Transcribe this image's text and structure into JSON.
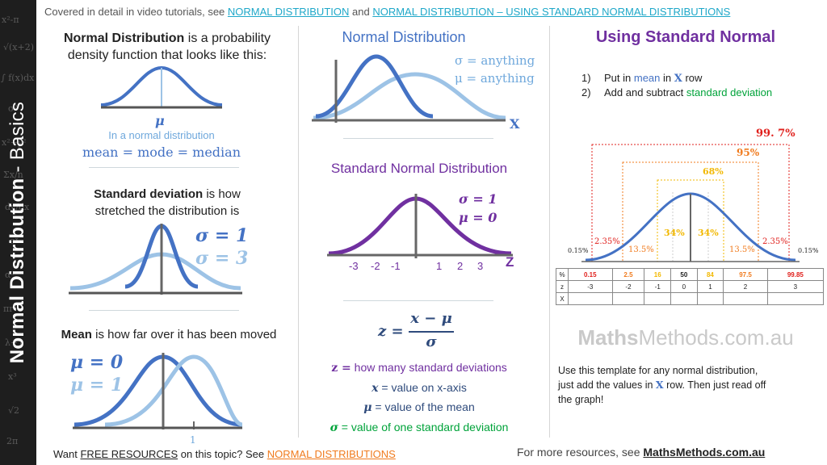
{
  "side_title": {
    "bold": "Normal Distribution",
    "rest": " - Basics"
  },
  "side_math": [
    "x²-π",
    "√(x+2)",
    "∫ f(x)dx",
    "σ²",
    "x²+y²",
    "Σx/n",
    "dy/dx",
    "eˣ",
    "α²",
    "πr²",
    "λ+1",
    "x³",
    "√2",
    "2π"
  ],
  "top_note": {
    "prefix": "Covered  in detail in video tutorials, see ",
    "link1": "NORMAL DISTRIBUTION",
    "middle": " and ",
    "link2": "NORMAL DISTRIBUTION – USING STANDARD NORMAL DISTRIBUTIONS"
  },
  "col1": {
    "sec1": {
      "title": "Normal Distribution",
      "text1": " is a probability",
      "text2": "density function that looks like this:",
      "mu": "μ",
      "caption": "In a normal distribution",
      "equation": "mean = mode = median"
    },
    "sec2": {
      "title": "Standard deviation",
      "text1": " is how",
      "text2": "stretched the distribution  is",
      "sigma1": "σ = 1",
      "sigma3": "σ = 3"
    },
    "sec3": {
      "title": "Mean",
      "text": " is how far over it has been moved",
      "mu0": "μ = 0",
      "mu1": "μ = 1",
      "tick": "1"
    }
  },
  "col2": {
    "sec1": {
      "title": "Normal Distribution",
      "sigma": "σ = anything",
      "mu": "μ = anything",
      "x_label": "X"
    },
    "sec2": {
      "title": "Standard Normal Distribution",
      "sigma": "σ = 1",
      "mu": "μ = 0",
      "z_label": "Z",
      "ticks": [
        "-3",
        "-2",
        "-1",
        "1",
        "2",
        "3"
      ]
    },
    "formula": {
      "lhs": "z =",
      "num": "x − μ",
      "den": "σ"
    },
    "defs": [
      {
        "sym": "z =",
        "text": "  how many standard deviations"
      },
      {
        "sym": "x",
        "text": " = value on x-axis"
      },
      {
        "sym": "μ",
        "text": " = value of the mean"
      },
      {
        "sym": "σ",
        "text": " = value of one standard deviation"
      }
    ]
  },
  "col3": {
    "title": "Using Standard Normal",
    "steps": [
      {
        "num": "1)",
        "a": "Put in ",
        "hl": "mean",
        "b": " in ",
        "x": "X",
        "c": " row"
      },
      {
        "num": "2)",
        "a": "Add and subtract ",
        "hl": "standard deviation"
      }
    ],
    "chart": {
      "p997": "99. 7%",
      "p95": "95%",
      "p68": "68%",
      "p34a": "34%",
      "p34b": "34%",
      "p135a": "13.5%",
      "p135b": "13.5%",
      "p235a": "2.35%",
      "p235b": "2.35%",
      "p015a": "0.15%",
      "p015b": "0.15%"
    },
    "table": {
      "pct_label": "%",
      "pct": [
        "0.15",
        "2.5",
        "16",
        "50",
        "84",
        "97.5",
        "99.85"
      ],
      "pct_colors": [
        "#e0201c",
        "#f07b1e",
        "#f2b800",
        "#222222",
        "#f2b800",
        "#f07b1e",
        "#e0201c"
      ],
      "z_label": "z",
      "z": [
        "-3",
        "-2",
        "-1",
        "0",
        "1",
        "2",
        "3"
      ],
      "x_label": "X"
    },
    "watermark": {
      "bold": "Maths",
      "rest": "Methods.com.au"
    },
    "note1a": "Use this template for any normal distribution,",
    "note2a": "just add the values in ",
    "note2x": "X",
    "note2b": " row. Then just read off",
    "note3": "the graph!"
  },
  "bottom": {
    "left_prefix": "Want ",
    "left_free": "FREE RESOURCES",
    "left_mid": " on this topic? See ",
    "left_link": "NORMAL DISTRIBUTIONS",
    "right_prefix": "For more resources, see ",
    "right_link": "MathsMethods.com.au"
  },
  "colors": {
    "blue": "#4472c4",
    "light_blue": "#9dc3e6",
    "purple": "#7030a0",
    "green": "#00a33a",
    "teal_link": "#1fa8c9",
    "orange": "#f07b1e",
    "red": "#e0201c",
    "gold": "#f2b800"
  }
}
